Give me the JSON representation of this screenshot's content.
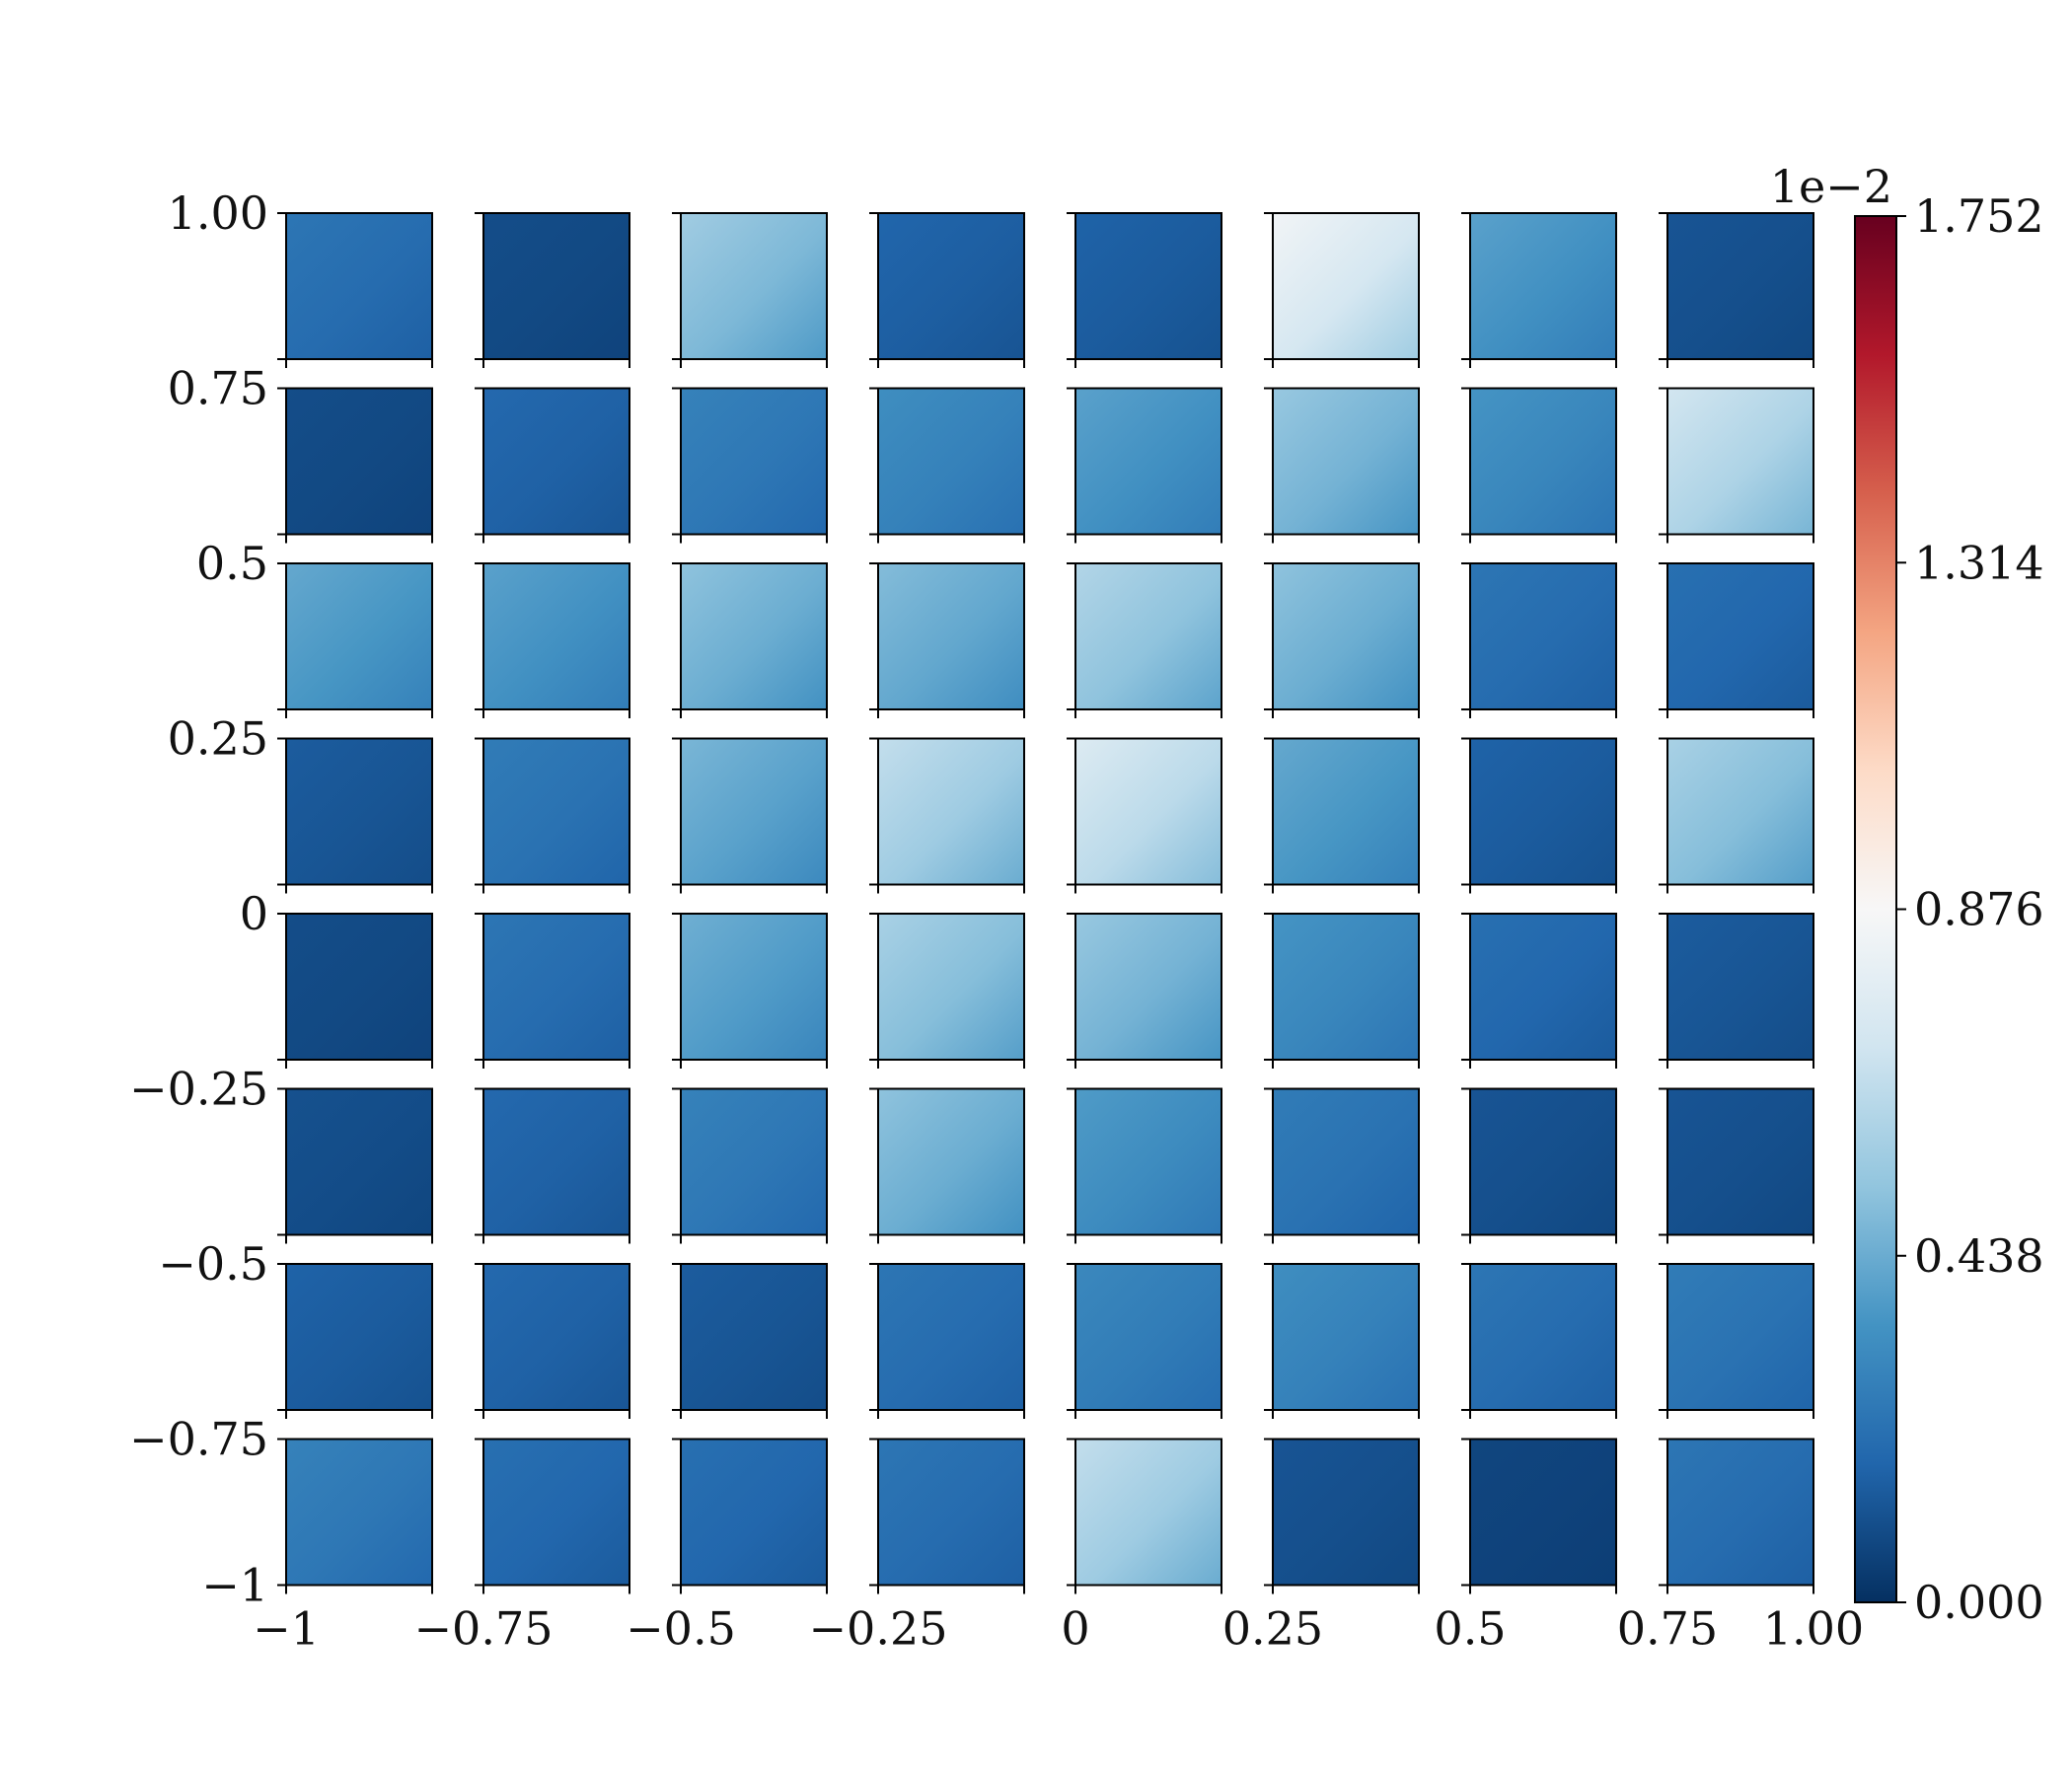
{
  "chart_data": {
    "type": "heatmap",
    "title": "",
    "xlabel": "",
    "ylabel": "",
    "xlim": [
      -1,
      1
    ],
    "ylim": [
      -1,
      1
    ],
    "grid_rows": 8,
    "grid_cols": 8,
    "colormap": "RdBu_r",
    "x_ticks": [
      {
        "value": -1,
        "label": "−1"
      },
      {
        "value": -0.75,
        "label": "−0.75"
      },
      {
        "value": -0.5,
        "label": "−0.5"
      },
      {
        "value": -0.25,
        "label": "−0.25"
      },
      {
        "value": 0,
        "label": "0"
      },
      {
        "value": 0.25,
        "label": "0.25"
      },
      {
        "value": 0.5,
        "label": "0.5"
      },
      {
        "value": 0.75,
        "label": "0.75"
      },
      {
        "value": 1,
        "label": "1.00"
      }
    ],
    "y_ticks": [
      {
        "value": 1,
        "label": "1.00"
      },
      {
        "value": 0.75,
        "label": "0.75"
      },
      {
        "value": 0.5,
        "label": "0.5"
      },
      {
        "value": 0.25,
        "label": "0.25"
      },
      {
        "value": 0,
        "label": "0"
      },
      {
        "value": -0.25,
        "label": "−0.25"
      },
      {
        "value": -0.5,
        "label": "−0.5"
      },
      {
        "value": -0.75,
        "label": "−0.75"
      },
      {
        "value": -1,
        "label": "−1"
      }
    ],
    "colorbar": {
      "min": 0,
      "max": 1.752,
      "exponent_label": "1e−2",
      "ticks": [
        {
          "value": 0,
          "label": "0.000"
        },
        {
          "value": 0.438,
          "label": "0.438"
        },
        {
          "value": 0.876,
          "label": "0.876"
        },
        {
          "value": 1.314,
          "label": "1.314"
        },
        {
          "value": 1.752,
          "label": "1.752"
        }
      ]
    },
    "cell_mean_values": [
      [
        0.2,
        0.08,
        0.48,
        0.15,
        0.14,
        0.72,
        0.34,
        0.1
      ],
      [
        0.08,
        0.16,
        0.24,
        0.28,
        0.34,
        0.46,
        0.3,
        0.6
      ],
      [
        0.36,
        0.34,
        0.44,
        0.42,
        0.52,
        0.44,
        0.2,
        0.18
      ],
      [
        0.12,
        0.22,
        0.4,
        0.56,
        0.64,
        0.36,
        0.14,
        0.5
      ],
      [
        0.08,
        0.2,
        0.38,
        0.5,
        0.46,
        0.3,
        0.18,
        0.12
      ],
      [
        0.09,
        0.16,
        0.24,
        0.44,
        0.32,
        0.22,
        0.1,
        0.1
      ],
      [
        0.14,
        0.16,
        0.12,
        0.2,
        0.26,
        0.28,
        0.2,
        0.22
      ],
      [
        0.24,
        0.18,
        0.18,
        0.2,
        0.56,
        0.1,
        0.06,
        0.2
      ]
    ]
  }
}
